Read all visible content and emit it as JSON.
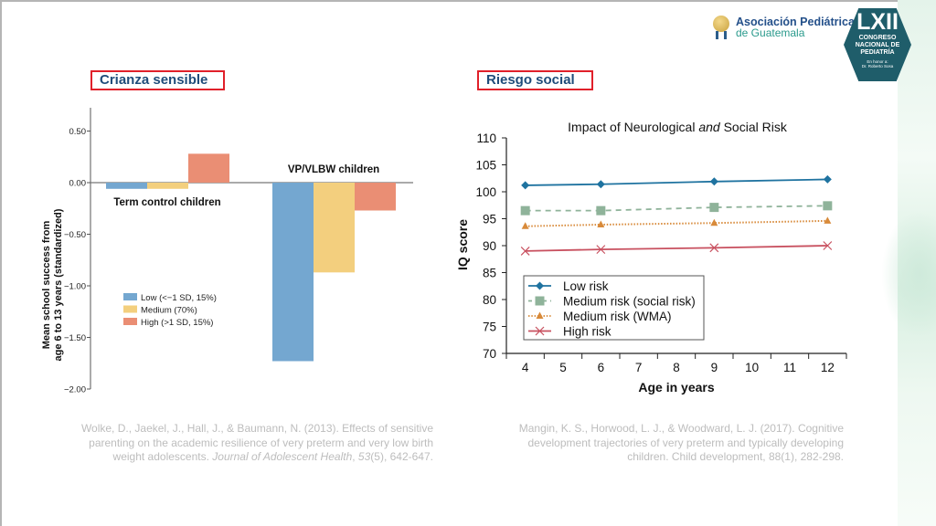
{
  "header": {
    "org_name_line1": "Asociación Pediátrica",
    "org_name_line2": "de Guatemala",
    "congress_numeral": "LXII",
    "congress_line1": "CONGRESO",
    "congress_line2": "NACIONAL DE",
    "congress_line3": "PEDIATRÍA",
    "honor_line1": "En honor a:",
    "honor_line2": "Dr. Roberto Sosa"
  },
  "left_panel": {
    "label": "Crianza sensible",
    "citation_line1": "Wolke, D., Jaekel, J., Hall, J., & Baumann, N. (2013). Effects of sensitive",
    "citation_line2": "parenting on the academic resilience of very preterm and very low birth",
    "citation_line3_pre": "weight adolescents. ",
    "citation_journal": "Journal of Adolescent Health",
    "citation_sep": ", ",
    "citation_volume": "53",
    "citation_rest": "(5), 642-647."
  },
  "right_panel": {
    "label": "Riesgo social",
    "citation_line1": "Mangin, K. S., Horwood, L. J., & Woodward, L. J. (2017). Cognitive",
    "citation_line2": "development trajectories of very preterm and typically developing",
    "citation_line3": "children. Child development, 88(1), 282-298."
  },
  "colors": {
    "label_border": "#e0202a",
    "label_text": "#1f4c7a",
    "low": "#74a7d0",
    "medium": "#f3cf7e",
    "high": "#ea8e74",
    "low_risk": "#1f73a0",
    "medium_social": "#8fb39a",
    "medium_wma": "#d88a3a",
    "high_risk": "#c8505f"
  },
  "chart_data": [
    {
      "type": "bar",
      "title": "",
      "xlabel": "",
      "ylabel_line1": "Mean school success from",
      "ylabel_line2": "age 6 to 13 years (standardized)",
      "ylim": [
        -2.0,
        0.7
      ],
      "yticks": [
        0.5,
        0.0,
        -0.5,
        -1.0,
        -1.5,
        -2.0
      ],
      "ytick_labels": [
        "0.50",
        "0.00",
        "−0.50",
        "−1.00",
        "−1.50",
        "−2.00"
      ],
      "categories": [
        "Term control children",
        "VP/VLBW children"
      ],
      "series": [
        {
          "name": "Low (<−1 SD, 15%)",
          "values": [
            -0.06,
            -1.73
          ]
        },
        {
          "name": "Medium (70%)",
          "values": [
            -0.06,
            -0.87
          ]
        },
        {
          "name": "High (>1 SD, 15%)",
          "values": [
            0.28,
            -0.27
          ]
        }
      ],
      "grid": false,
      "legend_position": "middle-left"
    },
    {
      "type": "line",
      "title_pre": "Impact of Neurological ",
      "title_em": "and",
      "title_post": " Social Risk",
      "xlabel": "Age in years",
      "ylabel": "IQ score",
      "xlim": [
        3.5,
        12.5
      ],
      "ylim": [
        70,
        110
      ],
      "xticks": [
        4,
        5,
        6,
        7,
        8,
        9,
        10,
        11,
        12
      ],
      "yticks": [
        70,
        75,
        80,
        85,
        90,
        95,
        100,
        105,
        110
      ],
      "x": [
        4,
        6,
        9,
        12
      ],
      "series": [
        {
          "name": "Low risk",
          "values": [
            101.2,
            101.4,
            101.9,
            102.3
          ],
          "marker": "diamond",
          "style": "solid"
        },
        {
          "name": "Medium risk (social risk)",
          "values": [
            96.5,
            96.5,
            97.1,
            97.4
          ],
          "marker": "square",
          "style": "dashed"
        },
        {
          "name": "Medium risk (WMA)",
          "values": [
            93.6,
            93.9,
            94.2,
            94.6
          ],
          "marker": "triangle",
          "style": "dotted"
        },
        {
          "name": "High risk",
          "values": [
            89.0,
            89.3,
            89.6,
            90.0
          ],
          "marker": "x",
          "style": "solid"
        }
      ],
      "grid": false,
      "legend_position": "bottom-left"
    }
  ]
}
